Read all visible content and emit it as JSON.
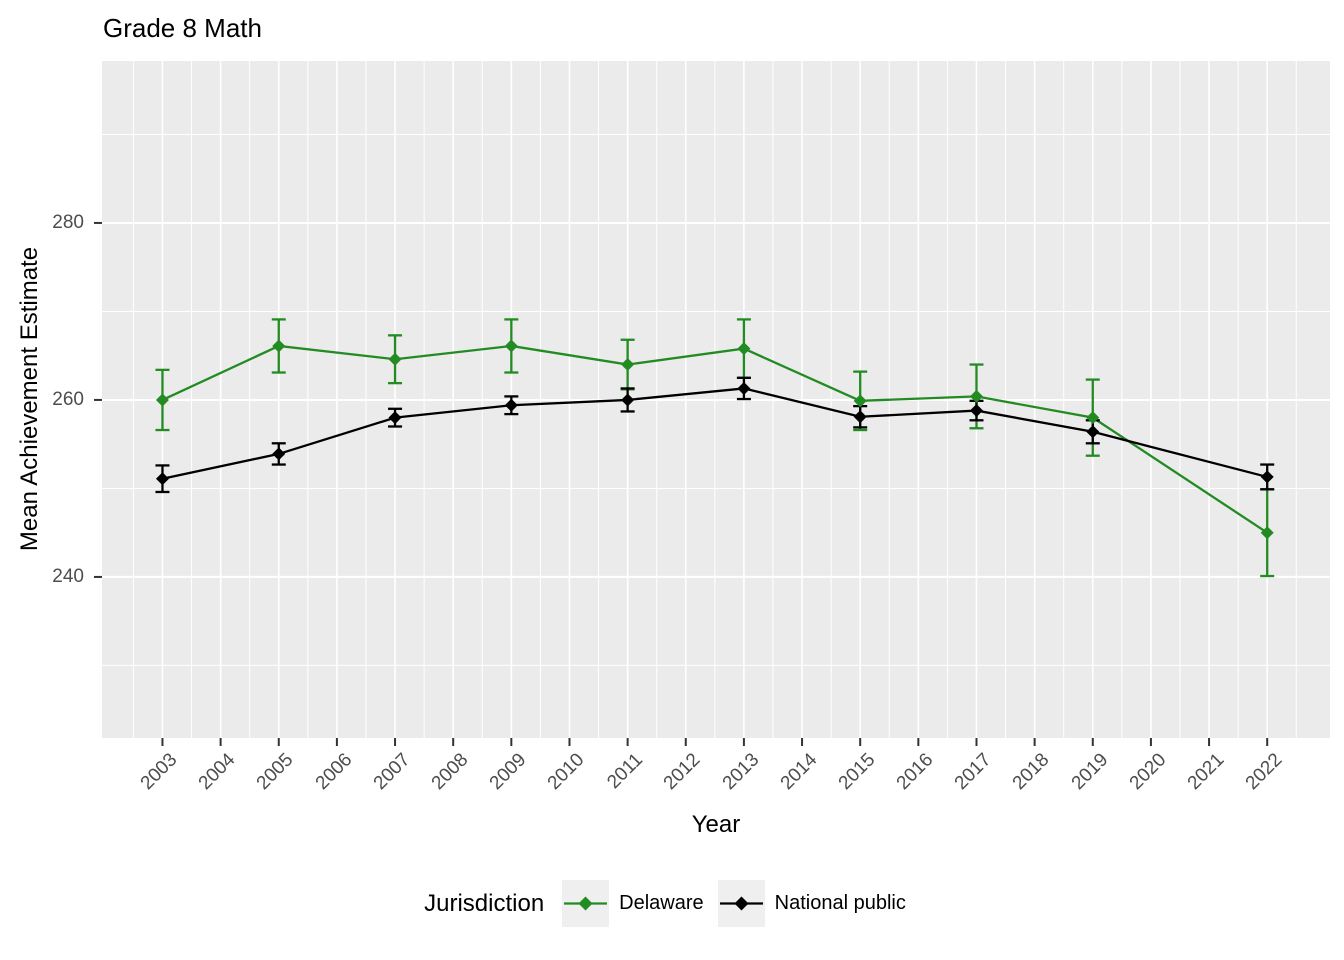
{
  "title": "Grade 8 Math",
  "colors": {
    "panel_bg": "#EBEBEB",
    "grid": "#FFFFFF",
    "tick_mark": "#333333",
    "tick_text": "#4D4D4D",
    "delaware_green": "#228B22",
    "national_black": "#000000",
    "legend_key_bg": "#EFEFEF"
  },
  "legend": {
    "title": "Jurisdiction",
    "entries": [
      {
        "label": "Delaware",
        "color": "#228B22"
      },
      {
        "label": "National public",
        "color": "#000000"
      }
    ]
  },
  "chart_data": {
    "type": "line",
    "title": "Grade 8 Math",
    "xlabel": "Year",
    "ylabel": "Mean Achievement Estimate",
    "x_ticks": [
      2003,
      2004,
      2005,
      2006,
      2007,
      2008,
      2009,
      2010,
      2011,
      2012,
      2013,
      2014,
      2015,
      2016,
      2017,
      2018,
      2019,
      2020,
      2021,
      2022
    ],
    "y_ticks": [
      240,
      260,
      280
    ],
    "y_minor_ticks": [
      230,
      250,
      270,
      290
    ],
    "xlim": [
      2001.96,
      2023.08
    ],
    "ylim": [
      221.8,
      298.3
    ],
    "grid": true,
    "marker": "diamond",
    "error_bars": true,
    "legend_position": "bottom",
    "legend_title": "Jurisdiction",
    "x": [
      2003,
      2005,
      2007,
      2009,
      2011,
      2013,
      2015,
      2017,
      2019,
      2022
    ],
    "series": [
      {
        "name": "Delaware",
        "color": "#228B22",
        "values": [
          260.0,
          266.1,
          264.6,
          266.1,
          264.0,
          265.8,
          259.9,
          260.4,
          258.0,
          245.0
        ],
        "err_low": [
          256.6,
          263.1,
          261.9,
          263.1,
          261.2,
          262.5,
          256.6,
          256.8,
          253.7,
          240.1
        ],
        "err_high": [
          263.4,
          269.1,
          267.3,
          269.1,
          266.8,
          269.1,
          263.2,
          264.0,
          262.3,
          249.9
        ]
      },
      {
        "name": "National public",
        "color": "#000000",
        "values": [
          251.1,
          253.9,
          258.0,
          259.4,
          260.0,
          261.3,
          258.1,
          258.8,
          256.4,
          251.3
        ],
        "err_low": [
          249.6,
          252.7,
          257.0,
          258.4,
          258.7,
          260.1,
          256.9,
          257.7,
          255.1,
          249.9
        ],
        "err_high": [
          252.6,
          255.1,
          259.0,
          260.4,
          261.3,
          262.5,
          259.3,
          259.9,
          257.7,
          252.7
        ]
      }
    ]
  }
}
